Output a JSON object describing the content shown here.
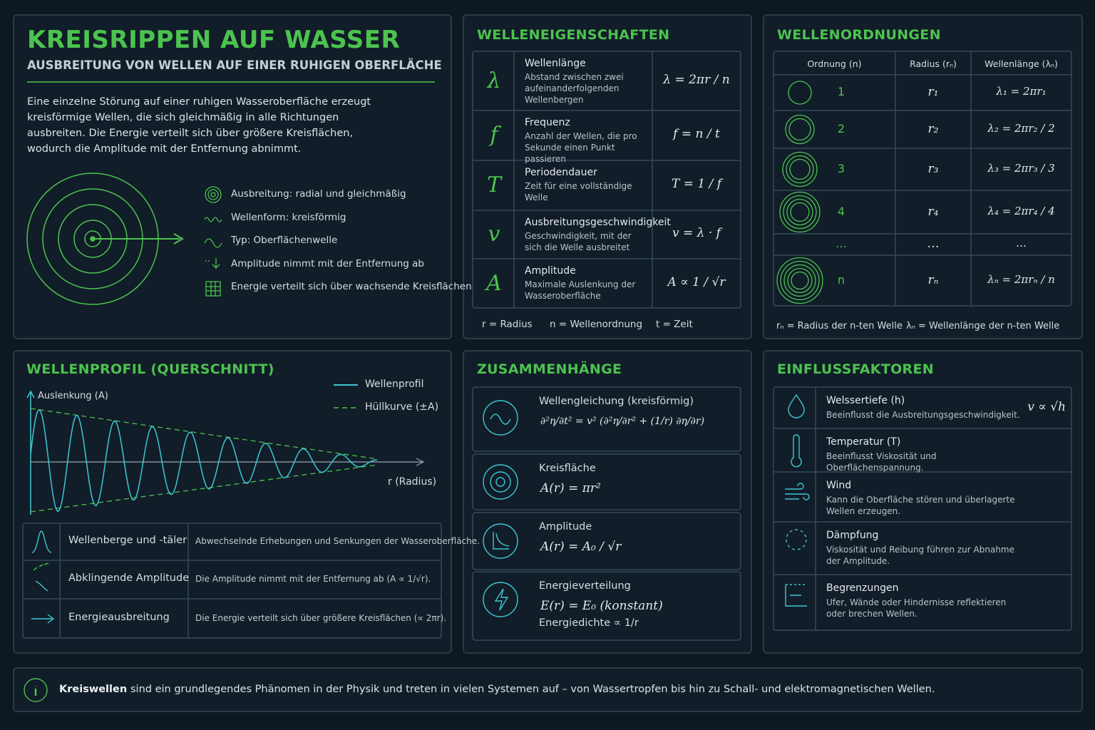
{
  "header": {
    "title": "KREISRIPPEN AUF WASSER",
    "subtitle": "AUSBREITUNG VON WELLEN AUF EINER RUHIGEN OBERFLÄCHE",
    "description": "Eine einzelne Störung auf einer ruhigen Wasseroberfläche erzeugt kreisförmige Wellen, die sich gleichmäßig in alle Richtungen ausbreiten. Die Energie verteilt sich über größere Kreisflächen, wodurch die Amplitude mit der Entfernung abnimmt."
  },
  "features": [
    "Ausbreitung: radial und gleichmäßig",
    "Wellenform: kreisförmig",
    "Typ: Oberflächenwelle",
    "Amplitude nimmt mit der Entfernung ab",
    "Energie verteilt sich über wachsende Kreisflächen"
  ],
  "properties": {
    "title": "WELLENEIGENSCHAFTEN",
    "rows": [
      {
        "symbol": "λ",
        "name": "Wellenlänge",
        "description": "Abstand zwischen zwei aufeinanderfolgenden Wellenbergen",
        "formula": "λ = 2πr / n"
      },
      {
        "symbol": "f",
        "name": "Frequenz",
        "description": "Anzahl der Wellen, die pro Sekunde einen Punkt passieren",
        "formula": "f = n / t"
      },
      {
        "symbol": "T",
        "name": "Periodendauer",
        "description": "Zeit für eine vollständige Welle",
        "formula": "T = 1 / f"
      },
      {
        "symbol": "v",
        "name": "Ausbreitungsgeschwindigkeit",
        "description": "Geschwindigkeit, mit der sich die Welle ausbreitet",
        "formula": "v = λ · f"
      },
      {
        "symbol": "A",
        "name": "Amplitude",
        "description": "Maximale Auslenkung der Wasseroberfläche",
        "formula": "A ∝ 1 / √r"
      }
    ],
    "legend": [
      "r = Radius",
      "n = Wellenordnung",
      "t = Zeit"
    ]
  },
  "orders": {
    "title": "WELLENORDNUNGEN",
    "headers": [
      "Ordnung (n)",
      "Radius (rₙ)",
      "Wellenlänge (λₙ)"
    ],
    "rows": [
      [
        "1",
        "r₁",
        "λ₁ = 2πr₁"
      ],
      [
        "2",
        "r₂",
        "λ₂ = 2πr₂ / 2"
      ],
      [
        "3",
        "r₃",
        "λ₃ = 2πr₃ / 3"
      ],
      [
        "4",
        "r₄",
        "λ₄ = 2πr₄ / 4"
      ],
      [
        "…",
        "…",
        "…"
      ],
      [
        "n",
        "rₙ",
        "λₙ = 2πrₙ / n"
      ]
    ],
    "legend": [
      "rₙ = Radius der n-ten Welle",
      "λₙ = Wellenlänge der n-ten Welle"
    ]
  },
  "profile": {
    "title": "WELLENPROFIL (QUERSCHNITT)",
    "y_label": "Auslenkung (A)",
    "x_label": "r (Radius)",
    "legend": [
      "Wellenprofil",
      "Hüllkurve (±A)"
    ],
    "rows": [
      {
        "name": "Wellenberge und -täler",
        "description": "Abwechselnde Erhebungen und Senkungen der Wasseroberfläche."
      },
      {
        "name": "Abklingende Amplitude",
        "description": "Die Amplitude nimmt mit der Entfernung ab (A ∝ 1/√r)."
      },
      {
        "name": "Energieausbreitung",
        "description": "Die Energie verteilt sich über größere Kreisflächen (∝ 2πr)."
      }
    ]
  },
  "relations": {
    "title": "ZUSAMMENHÄNGE",
    "items": [
      {
        "name": "Wellengleichung (kreisförmig)",
        "formula": "∂²η/∂t² = v² (∂²η/∂r² + (1/r) ∂η/∂r)"
      },
      {
        "name": "Kreisfläche",
        "formula": "A(r) = πr²"
      },
      {
        "name": "Amplitude",
        "formula": "A(r) = A₀ / √r"
      },
      {
        "name": "Energieverteilung",
        "formula": "E(r) = E₀   (konstant)",
        "note": "Energiedichte ∝ 1/r"
      }
    ]
  },
  "factors": {
    "title": "EINFLUSSFAKTOREN",
    "items": [
      {
        "name": "Welssertiefe (h)",
        "description": "Beeinflusst die Ausbreitungsgeschwindigkeit.",
        "formula": "v ∝ √h"
      },
      {
        "name": "Temperatur (T)",
        "description": "Beeinflusst Viskosität und Oberflächenspannung."
      },
      {
        "name": "Wind",
        "description": "Kann die Oberfläche stören und überlagerte Wellen erzeugen."
      },
      {
        "name": "Dämpfung",
        "description": "Viskosität und Reibung führen zur Abnahme der Amplitude."
      },
      {
        "name": "Begrenzungen",
        "description": "Ufer, Wände oder Hindernisse reflektieren oder brechen Wellen."
      }
    ]
  },
  "footer": {
    "emphasis": "Kreiswellen",
    "text": "sind ein grundlegendes Phänomen in der Physik und treten in vielen Systemen auf – von Wassertropfen bis hin zu Schall- und elektromagnetischen Wellen."
  }
}
